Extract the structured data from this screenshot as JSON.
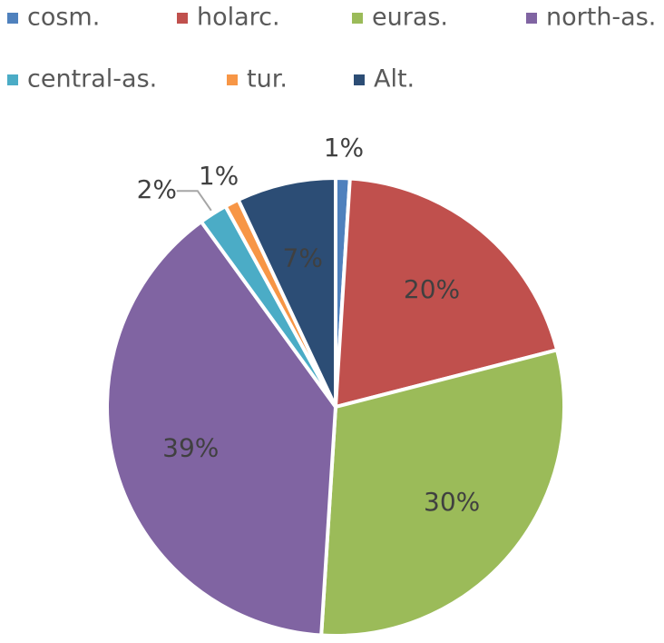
{
  "chart_data": {
    "type": "pie",
    "categories": [
      "cosm.",
      "holarc.",
      "euras.",
      "north-as.",
      "central-as.",
      "tur.",
      "Alt."
    ],
    "values": [
      1,
      20,
      30,
      39,
      2,
      1,
      7
    ],
    "value_labels": [
      "1%",
      "20%",
      "30%",
      "39%",
      "2%",
      "1%",
      "7%"
    ],
    "colors": [
      "#4f81bd",
      "#c0504d",
      "#9bbb59",
      "#8064a2",
      "#4bacc6",
      "#f79646",
      "#2c4d75"
    ],
    "legend": "top"
  }
}
